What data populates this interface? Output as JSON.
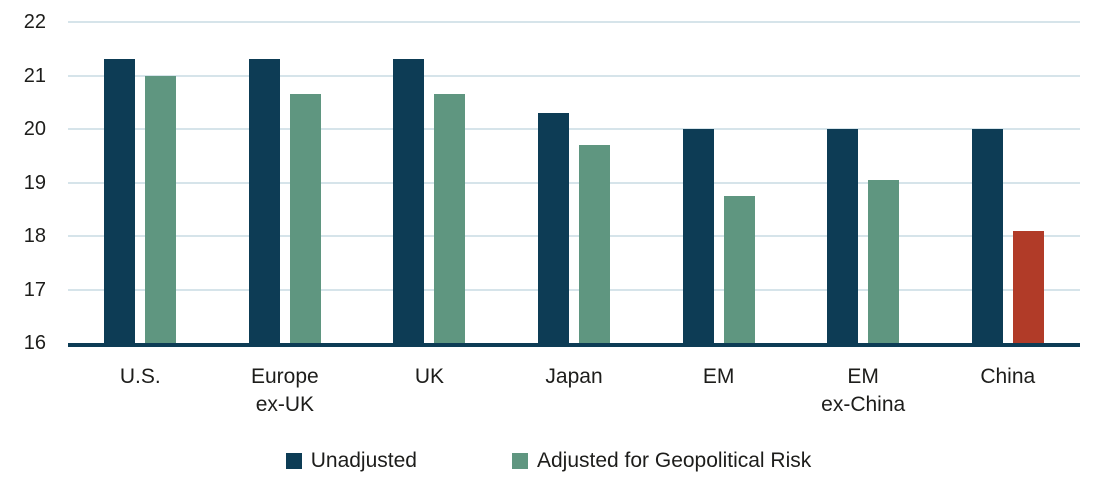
{
  "chart_data": {
    "type": "bar",
    "title": "",
    "xlabel": "",
    "ylabel": "",
    "categories": [
      "U.S.",
      "Europe\nex-UK",
      "UK",
      "Japan",
      "EM",
      "EM\nex-China",
      "China"
    ],
    "series": [
      {
        "name": "Unadjusted",
        "color": "#0d3c55",
        "values": [
          21.3,
          21.3,
          21.3,
          20.3,
          20.0,
          20.0,
          20.0
        ]
      },
      {
        "name": "Adjusted for Geopolitical Risk",
        "color": "#5f9680",
        "values": [
          21.0,
          20.65,
          20.65,
          19.7,
          18.75,
          19.05,
          18.1
        ],
        "point_colors": {
          "6": "#b13b28"
        }
      }
    ],
    "ylim": [
      16,
      22
    ],
    "ytick_step": 1,
    "yticks": [
      16,
      17,
      18,
      19,
      20,
      21,
      22
    ],
    "grid": "horizontal",
    "legend_position": "bottom",
    "colors": {
      "axis_line": "#0d3c55",
      "gridline": "#d6e4ea",
      "text": "#1d1d1b",
      "highlight_red": "#b13b28"
    }
  }
}
